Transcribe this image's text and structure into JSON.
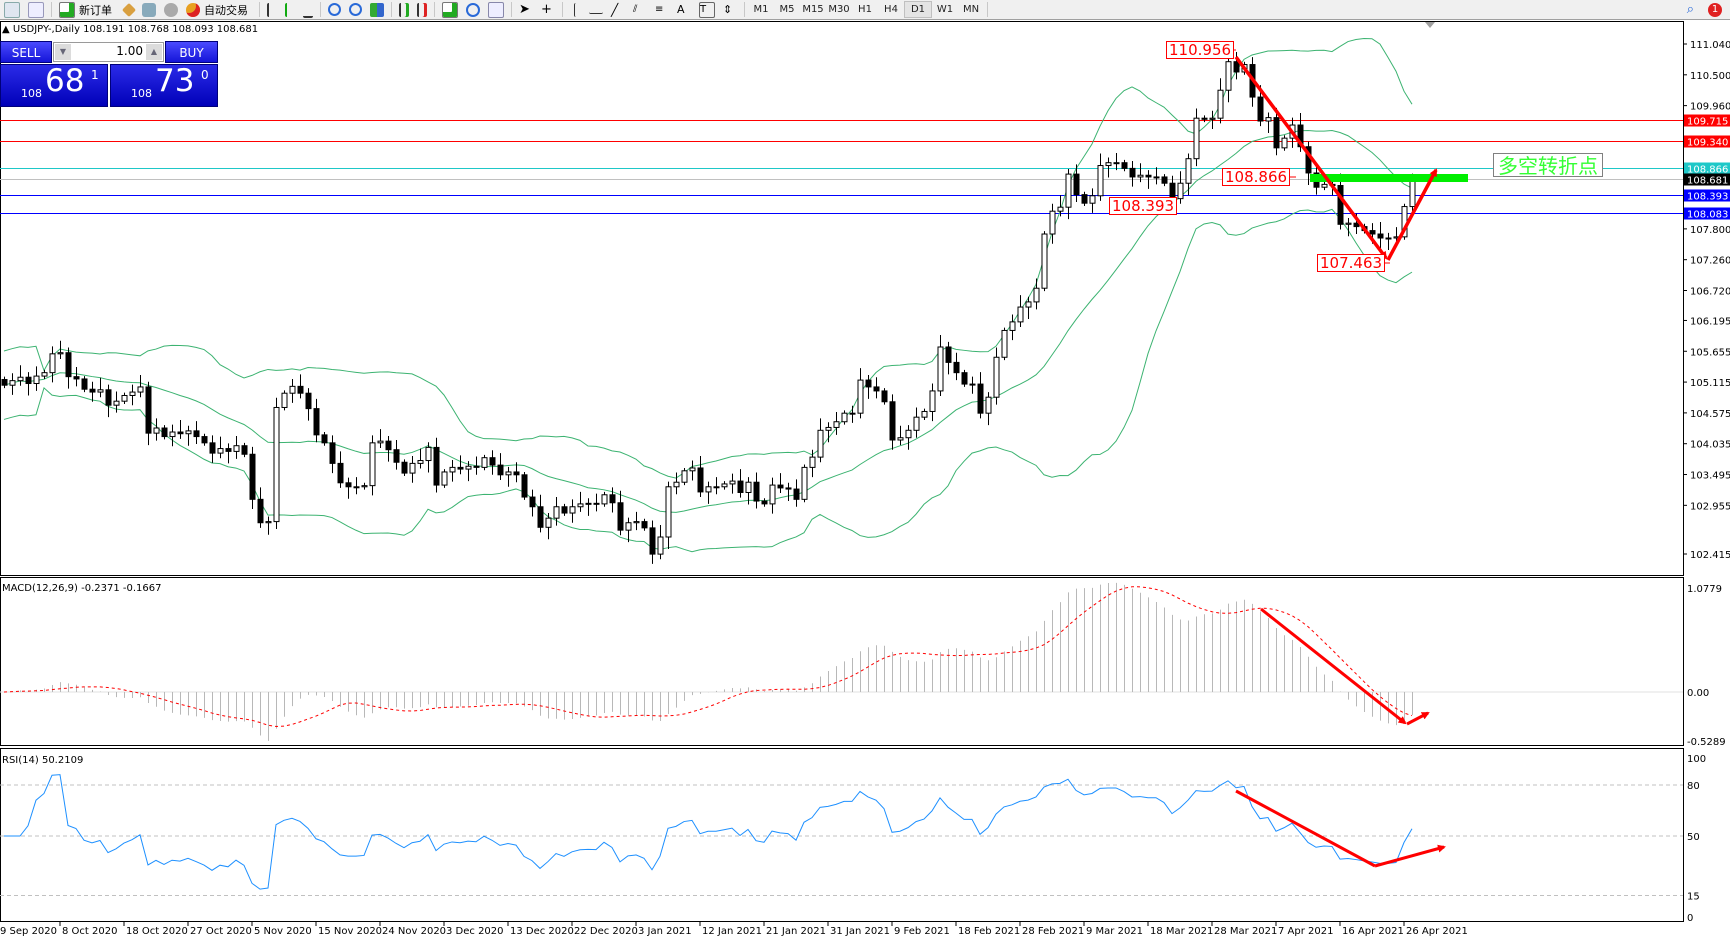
{
  "toolbar": {
    "new_order": "新订单",
    "auto_trading": "自动交易",
    "timeframes": [
      "M1",
      "M5",
      "M15",
      "M30",
      "H1",
      "H4",
      "D1",
      "W1",
      "MN"
    ],
    "active_timeframe": "D1",
    "notification_count": "1",
    "icons": [
      "new-chart-icon",
      "zoom-icon",
      "new-order-icon",
      "expert-icon",
      "navigator-icon",
      "signal-icon",
      "auto-trading-icon",
      "bar-chart-icon",
      "candle-chart-icon",
      "line-chart-icon",
      "zoom-in-icon",
      "zoom-out-icon",
      "tile-icon",
      "autoscroll-icon",
      "chart-shift-icon",
      "indicators-icon",
      "periods-icon",
      "templates-icon",
      "cursor-icon",
      "crosshair-icon",
      "vertical-line-icon",
      "horizontal-line-icon",
      "trendline-icon",
      "equidistant-channel-icon",
      "fibonacci-icon",
      "text-icon",
      "text-label-icon",
      "arrows-icon"
    ]
  },
  "chart": {
    "header": "▲ USDJPY-,Daily  108.191 108.768 108.093 108.681",
    "symbol": "USDJPY-",
    "period": "Daily",
    "last_bar": {
      "open": 108.191,
      "high": 108.768,
      "low": 108.093,
      "close": 108.681
    },
    "price_ticks": [
      "111.040",
      "110.500",
      "109.960",
      "107.800",
      "107.260",
      "106.720",
      "106.195",
      "105.655",
      "105.115",
      "104.575",
      "104.035",
      "103.495",
      "102.955",
      "102.415"
    ],
    "closes": [
      105.06,
      105.14,
      105.2,
      105.09,
      105.22,
      105.28,
      105.61,
      105.63,
      105.21,
      105.17,
      104.99,
      104.94,
      104.98,
      104.71,
      104.78,
      104.88,
      104.94,
      105.03,
      104.22,
      104.31,
      104.16,
      104.24,
      104.21,
      104.26,
      104.16,
      104.05,
      103.87,
      103.95,
      103.9,
      104.0,
      103.85,
      103.06,
      102.65,
      102.67,
      104.67,
      104.92,
      105.04,
      104.92,
      104.65,
      104.19,
      104.05,
      103.69,
      103.35,
      103.28,
      103.28,
      103.3,
      104.05,
      104.08,
      103.93,
      103.71,
      103.52,
      103.69,
      103.74,
      103.97,
      103.31,
      103.54,
      103.62,
      103.59,
      103.64,
      103.62,
      103.79,
      103.66,
      103.49,
      103.54,
      103.49,
      103.1,
      102.93,
      102.57,
      102.73,
      102.93,
      102.82,
      102.93,
      102.98,
      102.99,
      102.98,
      103.14,
      103.0,
      102.52,
      102.65,
      102.67,
      102.56,
      102.1,
      102.4,
      103.28,
      103.36,
      103.56,
      103.61,
      103.19,
      103.28,
      103.28,
      103.33,
      103.38,
      103.18,
      103.36,
      103.03,
      102.98,
      103.31,
      103.26,
      103.24,
      103.06,
      103.62,
      103.8,
      104.27,
      104.32,
      104.42,
      104.57,
      104.57,
      105.15,
      105.03,
      104.96,
      104.77,
      104.1,
      104.14,
      104.27,
      104.5,
      104.6,
      104.96,
      105.73,
      105.46,
      105.28,
      105.08,
      105.08,
      104.57,
      104.85,
      105.55,
      106.02,
      106.17,
      106.43,
      106.52,
      106.76,
      107.71,
      108.11,
      108.18,
      108.76,
      108.4,
      108.25,
      108.38,
      108.91,
      108.96,
      108.96,
      108.86,
      108.71,
      108.74,
      108.71,
      108.71,
      108.6,
      108.33,
      108.6,
      109.03,
      109.74,
      109.72,
      109.74,
      110.23,
      110.73,
      110.55,
      110.68,
      110.11,
      109.69,
      109.75,
      109.22,
      109.39,
      109.62,
      109.24,
      108.78,
      108.53,
      108.58,
      108.56,
      107.88,
      107.9,
      107.84,
      107.77,
      107.71,
      107.64,
      107.64,
      107.66,
      108.191,
      108.681
    ],
    "bollinger": {
      "period": 20,
      "deviation": 2,
      "color": "#3cb371"
    },
    "levels": [
      {
        "price": 109.715,
        "label": "109.715",
        "color": "#ff0000"
      },
      {
        "price": 109.34,
        "label": "109.340",
        "color": "#ff0000"
      },
      {
        "price": 108.866,
        "label": "108.866",
        "color": "#1ec8c8"
      },
      {
        "price": 108.681,
        "label": "108.681",
        "color": "#000000",
        "line": "#c0c0c0"
      },
      {
        "price": 108.393,
        "label": "108.393",
        "color": "#0000ff"
      },
      {
        "price": 108.083,
        "label": "108.083",
        "color": "#0000ff"
      }
    ],
    "annotations": {
      "high": "110.956",
      "mid": "108.866",
      "support": "108.393",
      "low": "107.463",
      "turn_label": "多空转折点"
    },
    "dates": [
      "9 Sep 2020",
      "8 Oct 2020",
      "18 Oct 2020",
      "27 Oct 2020",
      "5 Nov 2020",
      "15 Nov 2020",
      "24 Nov 2020",
      "3 Dec 2020",
      "13 Dec 2020",
      "22 Dec 2020",
      "3 Jan 2021",
      "12 Jan 2021",
      "21 Jan 2021",
      "31 Jan 2021",
      "9 Feb 2021",
      "18 Feb 2021",
      "28 Feb 2021",
      "9 Mar 2021",
      "18 Mar 2021",
      "28 Mar 2021",
      "7 Apr 2021",
      "16 Apr 2021",
      "26 Apr 2021"
    ]
  },
  "macd": {
    "label": "MACD(12,26,9) -0.2371 -0.1667",
    "ticks": [
      "1.0779",
      "0.00",
      "-0.5289"
    ]
  },
  "rsi": {
    "label": "RSI(14) 50.2109",
    "ticks": [
      "100",
      "80",
      "50",
      "15",
      "0"
    ],
    "levels": [
      80,
      50,
      15
    ],
    "color": "#1e90ff"
  },
  "trade_panel": {
    "sell_label": "SELL",
    "buy_label": "BUY",
    "lot": "1.00",
    "sell_prefix": "108",
    "sell_big": "68",
    "sell_sup": "1",
    "buy_prefix": "108",
    "buy_big": "73",
    "buy_sup": "0"
  }
}
